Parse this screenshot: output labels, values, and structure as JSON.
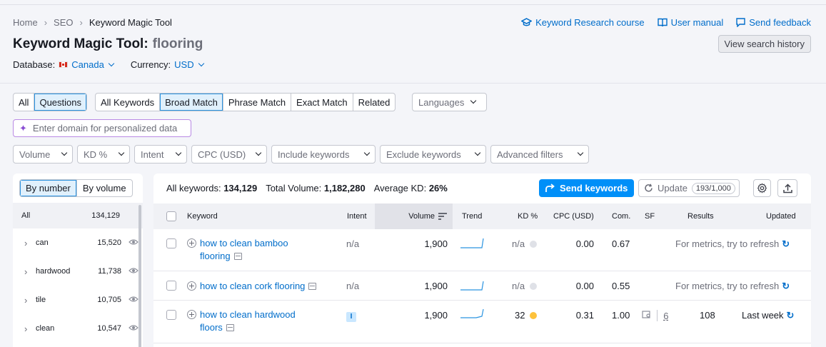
{
  "breadcrumb": [
    "Home",
    "SEO",
    "Keyword Magic Tool"
  ],
  "title": {
    "label": "Keyword Magic Tool:",
    "keyword": "flooring"
  },
  "meta": {
    "database_label": "Database:",
    "database_value": "Canada",
    "currency_label": "Currency:",
    "currency_value": "USD"
  },
  "top_links": {
    "course": "Keyword Research course",
    "manual": "User manual",
    "feedback": "Send feedback"
  },
  "history_button": "View search history",
  "filters": {
    "question_toggle": [
      "All",
      "Questions"
    ],
    "match_toggle": [
      "All Keywords",
      "Broad Match",
      "Phrase Match",
      "Exact Match",
      "Related"
    ],
    "languages": "Languages",
    "domain_placeholder": "Enter domain for personalized data",
    "dropdowns": [
      "Volume",
      "KD %",
      "Intent",
      "CPC (USD)",
      "Include keywords",
      "Exclude keywords",
      "Advanced filters"
    ]
  },
  "groups": {
    "toggle": [
      "By number",
      "By volume"
    ],
    "all": {
      "label": "All",
      "count": "134,129"
    },
    "items": [
      {
        "name": "can",
        "count": "15,520"
      },
      {
        "name": "hardwood",
        "count": "11,738"
      },
      {
        "name": "tile",
        "count": "10,705"
      },
      {
        "name": "clean",
        "count": "10,547"
      }
    ]
  },
  "summary": {
    "all_keywords_label": "All keywords:",
    "all_keywords": "134,129",
    "total_volume_label": "Total Volume:",
    "total_volume": "1,182,280",
    "avg_kd_label": "Average KD:",
    "avg_kd": "26%"
  },
  "actions": {
    "send": "Send keywords",
    "update": "Update",
    "update_quota": "193/1,000"
  },
  "columns": [
    "Keyword",
    "Intent",
    "Volume",
    "Trend",
    "KD %",
    "CPC (USD)",
    "Com.",
    "SF",
    "Results",
    "Updated"
  ],
  "rows": [
    {
      "keyword_l1": "how to clean bamboo",
      "keyword_l2": "flooring",
      "intent": "n/a",
      "volume": "1,900",
      "kd": "n/a",
      "kd_color": "#dfe1e7",
      "cpc": "0.00",
      "com": "0.67",
      "status": "For metrics, try to refresh"
    },
    {
      "keyword_l1": "how to clean cork flooring",
      "keyword_l2": "",
      "intent": "n/a",
      "volume": "1,900",
      "kd": "n/a",
      "kd_color": "#dfe1e7",
      "cpc": "0.00",
      "com": "0.55",
      "status": "For metrics, try to refresh"
    },
    {
      "keyword_l1": "how to clean hardwood",
      "keyword_l2": "floors",
      "intent": "I",
      "volume": "1,900",
      "kd": "32",
      "kd_color": "#fdc23c",
      "cpc": "0.31",
      "com": "1.00",
      "sf": "6",
      "results": "108",
      "updated": "Last week"
    }
  ]
}
